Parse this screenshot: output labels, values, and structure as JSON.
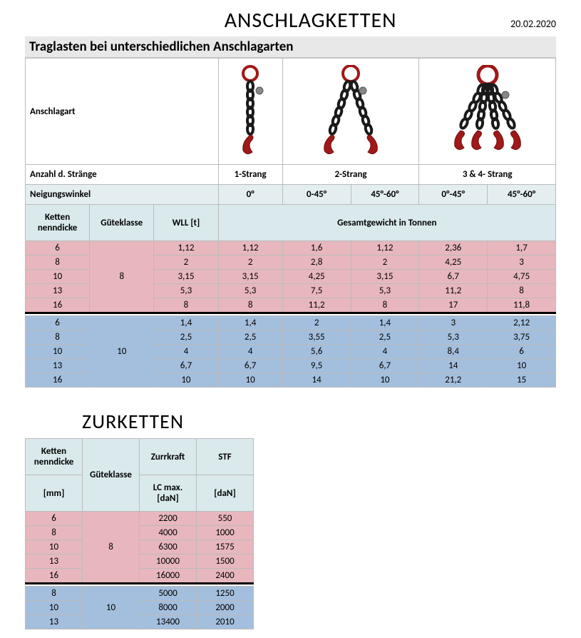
{
  "page": {
    "title": "ANSCHLAGKETTEN",
    "date": "20.02.2020",
    "section_header": "Traglasten bei unterschiedlichen Anschlagarten"
  },
  "colors": {
    "header_bg": "#e8e8e8",
    "angle_bg": "#e4eef0",
    "colhdr_bg": "#dae9ec",
    "pink": "#e7b7bd",
    "blue": "#a4bfdd",
    "chain_red": "#a01818",
    "chain_black": "#1a1a1a"
  },
  "table1": {
    "row_anschlagart": "Anschlagart",
    "row_anzahl": "Anzahl d. Stränge",
    "strands": [
      "1-Strang",
      "2-Strang",
      "3 & 4- Strang"
    ],
    "row_neigung": "Neigungswinkel",
    "angles": [
      "0°",
      "0-45°",
      "45°-60°",
      "0°-45°",
      "45°-60°"
    ],
    "colhdr": {
      "ketten": "Ketten nenndicke",
      "gk": "Güteklasse",
      "wll": "WLL [t]",
      "gesamt": "Gesamtgewicht in Tonnen"
    },
    "group8": {
      "gk": "8",
      "rows": [
        {
          "d": "6",
          "v": [
            "1,12",
            "1,12",
            "1,6",
            "1,12",
            "2,36",
            "1,7"
          ]
        },
        {
          "d": "8",
          "v": [
            "2",
            "2",
            "2,8",
            "2",
            "4,25",
            "3"
          ]
        },
        {
          "d": "10",
          "v": [
            "3,15",
            "3,15",
            "4,25",
            "3,15",
            "6,7",
            "4,75"
          ]
        },
        {
          "d": "13",
          "v": [
            "5,3",
            "5,3",
            "7,5",
            "5,3",
            "11,2",
            "8"
          ]
        },
        {
          "d": "16",
          "v": [
            "8",
            "8",
            "11,2",
            "8",
            "17",
            "11,8"
          ]
        }
      ]
    },
    "group10": {
      "gk": "10",
      "rows": [
        {
          "d": "6",
          "v": [
            "1,4",
            "1,4",
            "2",
            "1,4",
            "3",
            "2,12"
          ]
        },
        {
          "d": "8",
          "v": [
            "2,5",
            "2,5",
            "3,55",
            "2,5",
            "5,3",
            "3,75"
          ]
        },
        {
          "d": "10",
          "v": [
            "4",
            "4",
            "5,6",
            "4",
            "8,4",
            "6"
          ]
        },
        {
          "d": "13",
          "v": [
            "6,7",
            "6,7",
            "9,5",
            "6,7",
            "14",
            "10"
          ]
        },
        {
          "d": "16",
          "v": [
            "10",
            "10",
            "14",
            "10",
            "21,2",
            "15"
          ]
        }
      ]
    }
  },
  "section2": {
    "title": "ZURKETTEN",
    "colhdr": {
      "ketten": "Ketten nenndicke",
      "mm": "[mm]",
      "gk": "Güteklasse",
      "zurr": "Zurrkraft",
      "lc": "LC max. [daN]",
      "stf": "STF",
      "dan": "[daN]"
    },
    "group8": {
      "gk": "8",
      "rows": [
        {
          "d": "6",
          "lc": "2200",
          "stf": "550"
        },
        {
          "d": "8",
          "lc": "4000",
          "stf": "1000"
        },
        {
          "d": "10",
          "lc": "6300",
          "stf": "1575"
        },
        {
          "d": "13",
          "lc": "10000",
          "stf": "1500"
        },
        {
          "d": "16",
          "lc": "16000",
          "stf": "2400"
        }
      ]
    },
    "group10": {
      "gk": "10",
      "rows": [
        {
          "d": "8",
          "lc": "5000",
          "stf": "1250"
        },
        {
          "d": "10",
          "lc": "8000",
          "stf": "2000"
        },
        {
          "d": "13",
          "lc": "13400",
          "stf": "2010"
        }
      ]
    }
  }
}
